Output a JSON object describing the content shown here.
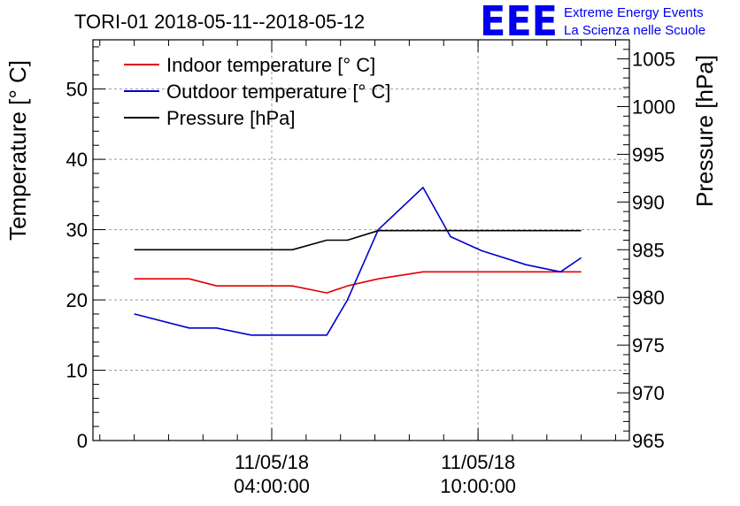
{
  "header": {
    "title": "TORI-01 2018-05-11--2018-05-12",
    "logo_text": "EEE",
    "logo_line1": "Extreme Energy Events",
    "logo_line2": "La Scienza nelle Scuole"
  },
  "colors": {
    "indoor": "#e00000",
    "outdoor": "#0000cc",
    "pressure": "#000000",
    "grid": "#9a9a9a",
    "logo": "#0000ee"
  },
  "chart_data": {
    "type": "line",
    "title": "TORI-01 2018-05-11--2018-05-12",
    "xlabel": "",
    "ylabel": "Temperature [° C]",
    "y2label": "Pressure [hPa]",
    "xlim_hours": [
      -1.2,
      14.4
    ],
    "ylim": [
      0,
      57
    ],
    "y2lim": [
      965,
      1007
    ],
    "y_ticks": [
      "0",
      "10",
      "20",
      "30",
      "40",
      "50"
    ],
    "y2_ticks": [
      "965",
      "970",
      "975",
      "980",
      "985",
      "990",
      "995",
      "1000",
      "1005"
    ],
    "x_ticks": [
      {
        "hour": 4,
        "line1": "11/05/18",
        "line2": "04:00:00"
      },
      {
        "hour": 10,
        "line1": "11/05/18",
        "line2": "10:00:00"
      }
    ],
    "x_hours": [
      0,
      1.6,
      2.4,
      3.4,
      4.6,
      5.6,
      6.2,
      7.1,
      8.4,
      9.2,
      10.1,
      11.4,
      12.4,
      13.0
    ],
    "series": [
      {
        "name": "Indoor temperature [° C]",
        "axis": "left",
        "values": [
          23,
          23,
          22,
          22,
          22,
          21,
          22,
          23,
          24,
          24,
          24,
          24,
          24,
          24
        ]
      },
      {
        "name": "Outdoor temperature [° C]",
        "axis": "left",
        "values": [
          18,
          16,
          16,
          15,
          15,
          15,
          20,
          30,
          36,
          29,
          27,
          25,
          24,
          26
        ]
      },
      {
        "name": "Pressure [hPa]",
        "axis": "right",
        "values": [
          985,
          985,
          985,
          985,
          985,
          986,
          986,
          987,
          987,
          987,
          987,
          987,
          987,
          987
        ]
      }
    ],
    "legend_position": "top-left",
    "grid": true
  }
}
